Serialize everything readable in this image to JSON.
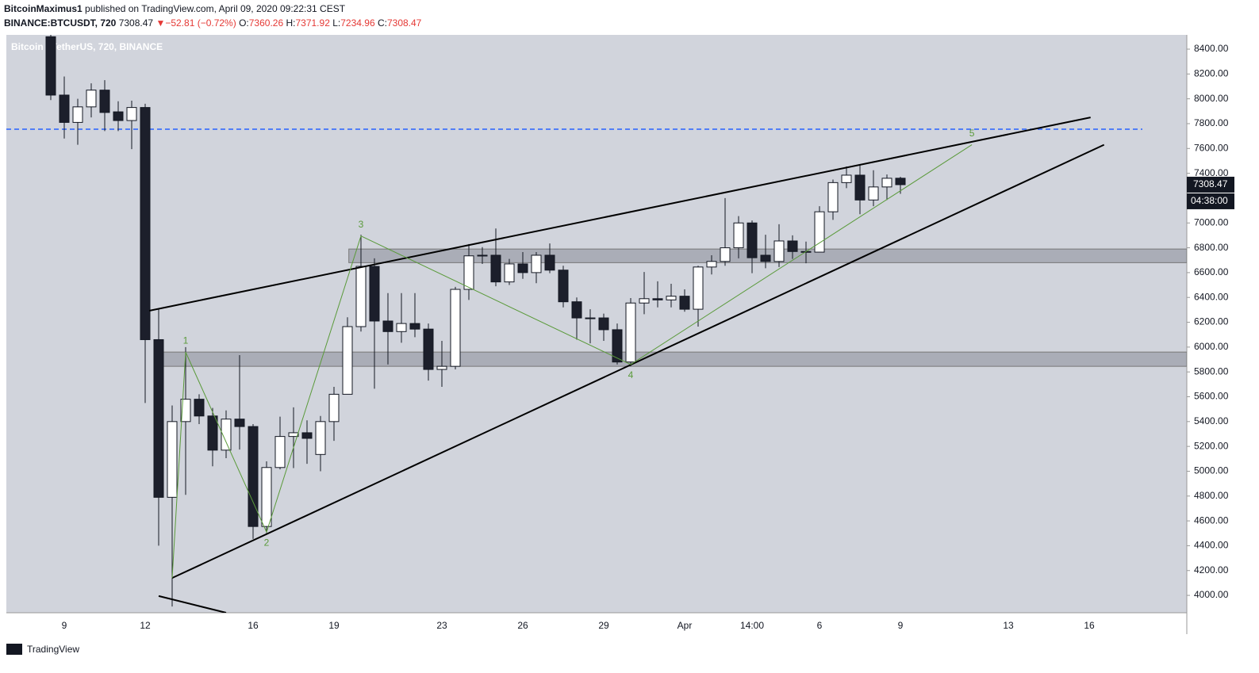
{
  "header": {
    "author": "BitcoinMaximus1",
    "published": "published on TradingView.com, April 09, 2020 09:22:31 CEST",
    "symbol": "BINANCE:BTCUSDT, 720",
    "arrow": "▼",
    "change": "−52.81 (−0.72%)",
    "o": "O:",
    "h": "H:",
    "l": "L:",
    "c": "C:"
  },
  "footer": {
    "brand": "TradingView"
  },
  "chart_data": {
    "type": "candlestick",
    "title": "Bitcoin / TetherUS, 720, BINANCE",
    "categories": [
      null,
      "9",
      null,
      null,
      null,
      null,
      null,
      "12",
      null,
      null,
      null,
      null,
      null,
      null,
      null,
      "16",
      null,
      null,
      null,
      null,
      null,
      "19",
      null,
      null,
      null,
      null,
      null,
      null,
      null,
      "23",
      null,
      null,
      null,
      null,
      null,
      "26",
      null,
      null,
      null,
      null,
      null,
      "29",
      null,
      null,
      null,
      null,
      null,
      "Apr",
      null,
      null,
      null,
      null,
      "14:00",
      null,
      null,
      null,
      null,
      "6",
      null,
      null,
      null,
      null,
      null,
      "9",
      null,
      null,
      null,
      null,
      null,
      null,
      null,
      "13",
      null,
      null,
      null,
      null,
      null,
      "16"
    ],
    "open": [
      8500,
      8030,
      7810,
      7935,
      8070,
      7895,
      7825,
      7930,
      6060,
      4790,
      5400,
      5580,
      5445,
      5170,
      5420,
      5360,
      4555,
      5030,
      5280,
      5310,
      5135,
      5400,
      5620,
      6165,
      6650,
      6210,
      6125,
      6190,
      6145,
      5820,
      5845,
      6465,
      6735,
      6740,
      6525,
      6670,
      6600,
      6740,
      6620,
      6365,
      6235,
      6235,
      6140,
      5880,
      6355,
      6390,
      6380,
      6410,
      6305,
      6645,
      6690,
      6800,
      7000,
      6740,
      6690,
      6855,
      6770,
      6765,
      7090,
      7325,
      7385,
      7185,
      7290,
      7360.26,
      null,
      null,
      null,
      null,
      null,
      null,
      null,
      null,
      null,
      null,
      null,
      null,
      null,
      null
    ],
    "high": [
      8560,
      8180,
      8000,
      8125,
      8150,
      7980,
      7985,
      7960,
      6305,
      5530,
      6000,
      5620,
      5510,
      5490,
      5935,
      5380,
      5080,
      5440,
      5515,
      5410,
      5445,
      5680,
      6240,
      6905,
      6715,
      6435,
      6435,
      6435,
      6190,
      6050,
      6485,
      6830,
      6805,
      6955,
      6710,
      6765,
      6765,
      6835,
      6655,
      6400,
      6305,
      6270,
      6190,
      6395,
      6605,
      6530,
      6510,
      6465,
      6655,
      6740,
      7200,
      7055,
      7020,
      6905,
      6990,
      6900,
      6850,
      7135,
      7350,
      7455,
      7470,
      7425,
      7390,
      7371.92,
      null,
      null,
      null,
      null,
      null,
      null,
      null,
      null,
      null,
      null,
      null,
      null,
      null,
      null
    ],
    "low": [
      7990,
      7680,
      7630,
      7850,
      7740,
      7740,
      7595,
      5550,
      4400,
      3910,
      4810,
      5380,
      5040,
      5105,
      5175,
      4455,
      4500,
      5015,
      5025,
      5060,
      5000,
      5245,
      5620,
      6125,
      5665,
      5860,
      6035,
      6080,
      5730,
      5680,
      5820,
      6380,
      6670,
      6490,
      6500,
      6550,
      6515,
      6595,
      6320,
      6060,
      6030,
      6050,
      5860,
      5845,
      6265,
      6320,
      6320,
      6285,
      6165,
      6585,
      6655,
      6715,
      6595,
      6635,
      6645,
      6710,
      6675,
      6765,
      7025,
      7280,
      7070,
      7135,
      7185,
      7234.96,
      null,
      null,
      null,
      null,
      null,
      null,
      null,
      null,
      null,
      null,
      null,
      null,
      null,
      null
    ],
    "close": [
      8030,
      7810,
      7935,
      8070,
      7890,
      7825,
      7930,
      6060,
      4790,
      5400,
      5580,
      5445,
      5170,
      5420,
      5360,
      4555,
      5030,
      5280,
      5310,
      5265,
      5400,
      5620,
      6165,
      6650,
      6210,
      6125,
      6190,
      6145,
      5820,
      5845,
      6465,
      6735,
      6740,
      6525,
      6670,
      6600,
      6740,
      6620,
      6365,
      6235,
      6230,
      6140,
      5880,
      6355,
      6390,
      6380,
      6410,
      6305,
      6645,
      6690,
      6800,
      7000,
      6720,
      6690,
      6855,
      6770,
      6765,
      7090,
      7325,
      7385,
      7185,
      7290,
      7360,
      7308.47,
      null,
      null,
      null,
      null,
      null,
      null,
      null,
      null,
      null,
      null,
      null,
      null,
      null,
      null
    ],
    "up_color": "#ffffff",
    "down_color": "#1c1f2b",
    "ylim": [
      3860,
      8515
    ],
    "yticks": [
      {
        "value": 4000,
        "label": "4000.00"
      },
      {
        "value": 4200,
        "label": "4200.00"
      },
      {
        "value": 4400,
        "label": "4400.00"
      },
      {
        "value": 4600,
        "label": "4600.00"
      },
      {
        "value": 4800,
        "label": "4800.00"
      },
      {
        "value": 5000,
        "label": "5000.00"
      },
      {
        "value": 5200,
        "label": "5200.00"
      },
      {
        "value": 5400,
        "label": "5400.00"
      },
      {
        "value": 5600,
        "label": "5600.00"
      },
      {
        "value": 5800,
        "label": "5800.00"
      },
      {
        "value": 6000,
        "label": "6000.00"
      },
      {
        "value": 6200,
        "label": "6200.00"
      },
      {
        "value": 6400,
        "label": "6400.00"
      },
      {
        "value": 6600,
        "label": "6600.00"
      },
      {
        "value": 6800,
        "label": "6800.00"
      },
      {
        "value": 7000,
        "label": "7000.00"
      },
      {
        "value": 7200,
        "label": "7200.00"
      },
      {
        "value": 7400,
        "label": "7400.00"
      },
      {
        "value": 7600,
        "label": "7600.00"
      },
      {
        "value": 7800,
        "label": "7800.00"
      },
      {
        "value": 8000,
        "label": "8000.00"
      },
      {
        "value": 8200,
        "label": "8200.00"
      },
      {
        "value": 8400,
        "label": "8400.00"
      }
    ],
    "countdown": "04:38:00",
    "horizontal_line": {
      "y": 7755,
      "color": "#2962ff"
    },
    "zones": [
      {
        "x": 22.1,
        "range": [
          6680,
          6790
        ]
      },
      {
        "x": 8,
        "range": [
          5845,
          5960
        ]
      }
    ],
    "trend_lines": [
      {
        "x": [
          7.3,
          77.1
        ],
        "y": [
          6293,
          7850
        ]
      },
      {
        "x": [
          9,
          78.1
        ],
        "y": [
          4140,
          7630
        ]
      },
      {
        "x": [
          8,
          13
        ],
        "y": [
          3995,
          3860
        ]
      }
    ],
    "wave": {
      "color": "#5a9a3a",
      "x": [
        9,
        10,
        16,
        23,
        43,
        68.3
      ],
      "y": [
        4140,
        5960,
        4510,
        6895,
        5860,
        7630
      ],
      "labels": [
        null,
        "1",
        "2",
        "3",
        "4",
        "5"
      ]
    }
  }
}
